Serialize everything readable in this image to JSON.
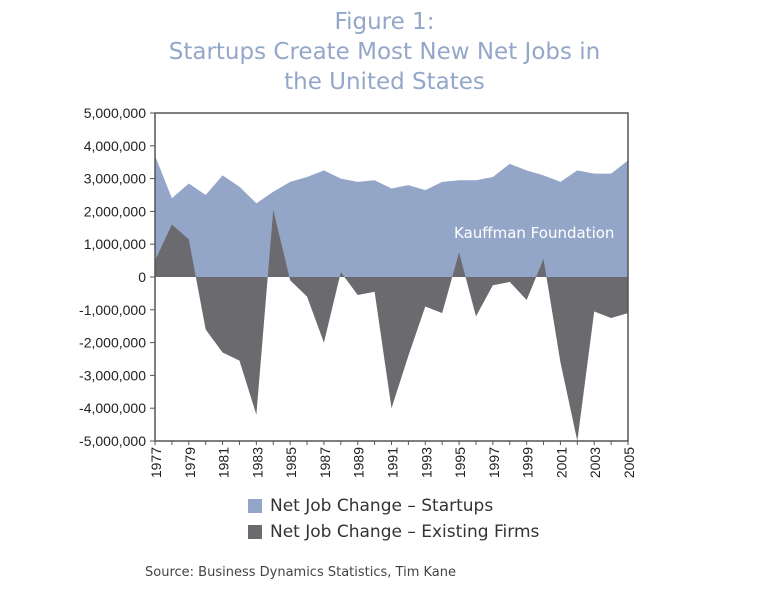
{
  "title_lines": [
    "Figure 1:",
    "Startups Create Most New Net Jobs in",
    "the United States"
  ],
  "source": "Source: Business Dynamics Statistics, Tim Kane",
  "colors": {
    "startups": "#94a6c8",
    "existing": "#6b6b6f",
    "title": "#93a7c9"
  },
  "chart_data": {
    "type": "area",
    "title": "Figure 1: Startups Create Most New Net Jobs in the United States",
    "xlabel": "",
    "ylabel": "",
    "annotation": "Kauffman Foundation",
    "ylim": [
      -5000000,
      5000000
    ],
    "yticks": [
      5000000,
      4000000,
      3000000,
      2000000,
      1000000,
      0,
      -1000000,
      -2000000,
      -3000000,
      -4000000,
      -5000000
    ],
    "ytick_labels": [
      "5,000,000",
      "4,000,000",
      "3,000,000",
      "2,000,000",
      "1,000,000",
      "0",
      "-1,000,000",
      "-2,000,000",
      "-3,000,000",
      "-4,000,000",
      "-5,000,000"
    ],
    "xtick_labels": [
      "1977",
      "1979",
      "1981",
      "1983",
      "1985",
      "1987",
      "1989",
      "1991",
      "1993",
      "1995",
      "1997",
      "1999",
      "2001",
      "2003",
      "2005"
    ],
    "x": [
      1977,
      1978,
      1979,
      1980,
      1981,
      1982,
      1983,
      1984,
      1985,
      1986,
      1987,
      1988,
      1989,
      1990,
      1991,
      1992,
      1993,
      1994,
      1995,
      1996,
      1997,
      1998,
      1999,
      2000,
      2001,
      2002,
      2003,
      2004,
      2005
    ],
    "series": [
      {
        "name": "Net Job Change – Startups",
        "color": "#94a6c8",
        "values": [
          3700000,
          2400000,
          2850000,
          2500000,
          3100000,
          2750000,
          2250000,
          2600000,
          2900000,
          3050000,
          3250000,
          3000000,
          2900000,
          2950000,
          2700000,
          2800000,
          2650000,
          2900000,
          2950000,
          2950000,
          3050000,
          3450000,
          3250000,
          3100000,
          2900000,
          3250000,
          3150000,
          3150000,
          3550000
        ]
      },
      {
        "name": "Net Job Change – Existing Firms",
        "color": "#6b6b6f",
        "values": [
          500000,
          1600000,
          1150000,
          -1600000,
          -2300000,
          -2550000,
          -4200000,
          2050000,
          -100000,
          -600000,
          -2000000,
          150000,
          -550000,
          -450000,
          -4000000,
          -2400000,
          -900000,
          -1100000,
          750000,
          -1200000,
          -250000,
          -150000,
          -700000,
          550000,
          -2600000,
          -5000000,
          -1050000,
          -1250000,
          -1100000
        ]
      }
    ]
  }
}
